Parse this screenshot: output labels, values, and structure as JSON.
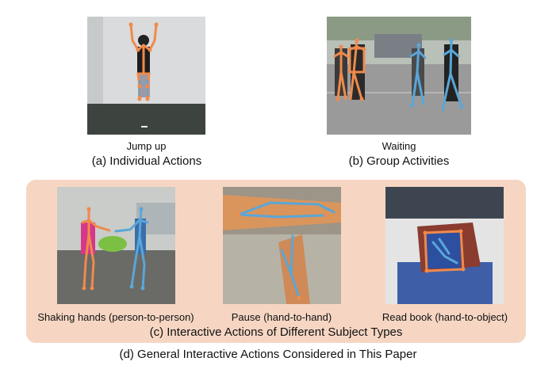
{
  "top": {
    "left": {
      "action_label": "Jump up",
      "caption": "(a) Individual Actions"
    },
    "right": {
      "action_label": "Waiting",
      "caption": "(b) Group Activities"
    }
  },
  "panel_c": {
    "items": [
      {
        "label": "Shaking hands (person-to-person)"
      },
      {
        "label": "Pause (hand-to-hand)"
      },
      {
        "label": "Read book (hand-to-object)"
      }
    ],
    "caption": "(c) Interactive Actions of Different Subject Types"
  },
  "figure_caption": "(d) General Interactive Actions Considered in This Paper",
  "colors": {
    "panel_background": "#f6d6c3",
    "skeleton_orange": "#f08a4b",
    "skeleton_blue": "#5aa6d8"
  }
}
